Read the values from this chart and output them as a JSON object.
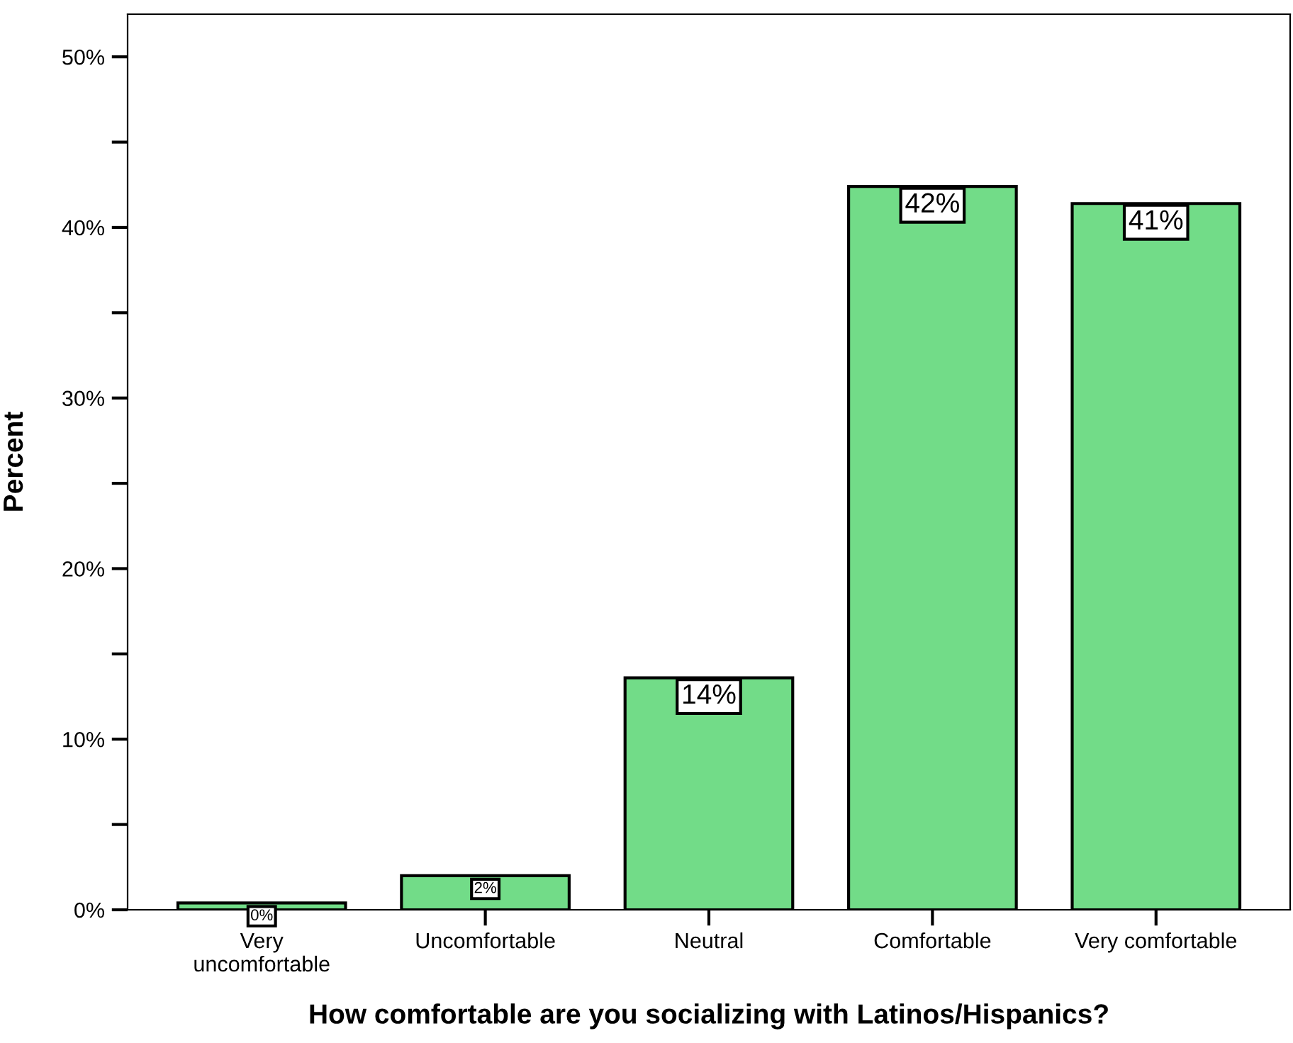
{
  "chart_data": {
    "type": "bar",
    "xlabel": "How comfortable are you socializing with Latinos/Hispanics?",
    "ylabel": "Percent",
    "categories": [
      "Very\nuncomfortable",
      "Uncomfortable",
      "Neutral",
      "Comfortable",
      "Very comfortable"
    ],
    "values": [
      0.4,
      2.0,
      13.6,
      42.4,
      41.4
    ],
    "value_labels": [
      "0%",
      "2%",
      "14%",
      "42%",
      "41%"
    ],
    "color": "#72dc88",
    "ylim": [
      0,
      52.5
    ],
    "yticks": [
      {
        "value": 0,
        "label": "0%"
      },
      {
        "value": 5,
        "label": null
      },
      {
        "value": 10,
        "label": "10%"
      },
      {
        "value": 15,
        "label": null
      },
      {
        "value": 20,
        "label": "20%"
      },
      {
        "value": 25,
        "label": null
      },
      {
        "value": 30,
        "label": "30%"
      },
      {
        "value": 35,
        "label": null
      },
      {
        "value": 40,
        "label": "40%"
      },
      {
        "value": 45,
        "label": null
      },
      {
        "value": 50,
        "label": "50%"
      }
    ],
    "grid": false
  }
}
